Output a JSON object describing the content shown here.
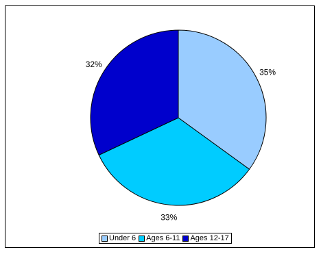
{
  "chart_data": {
    "type": "pie",
    "categories": [
      "Under 6",
      "Ages 6-11",
      "Ages 12-17"
    ],
    "values": [
      35,
      33,
      32
    ],
    "value_labels": [
      "35%",
      "33%",
      "32%"
    ],
    "colors": [
      "#99ccff",
      "#00ccff",
      "#0000cc"
    ],
    "legend_position": "bottom",
    "title": ""
  },
  "legend": {
    "items": [
      {
        "label": "Under 6",
        "color": "#99ccff"
      },
      {
        "label": "Ages 6-11",
        "color": "#00ccff"
      },
      {
        "label": "Ages 12-17",
        "color": "#0000cc"
      }
    ]
  }
}
